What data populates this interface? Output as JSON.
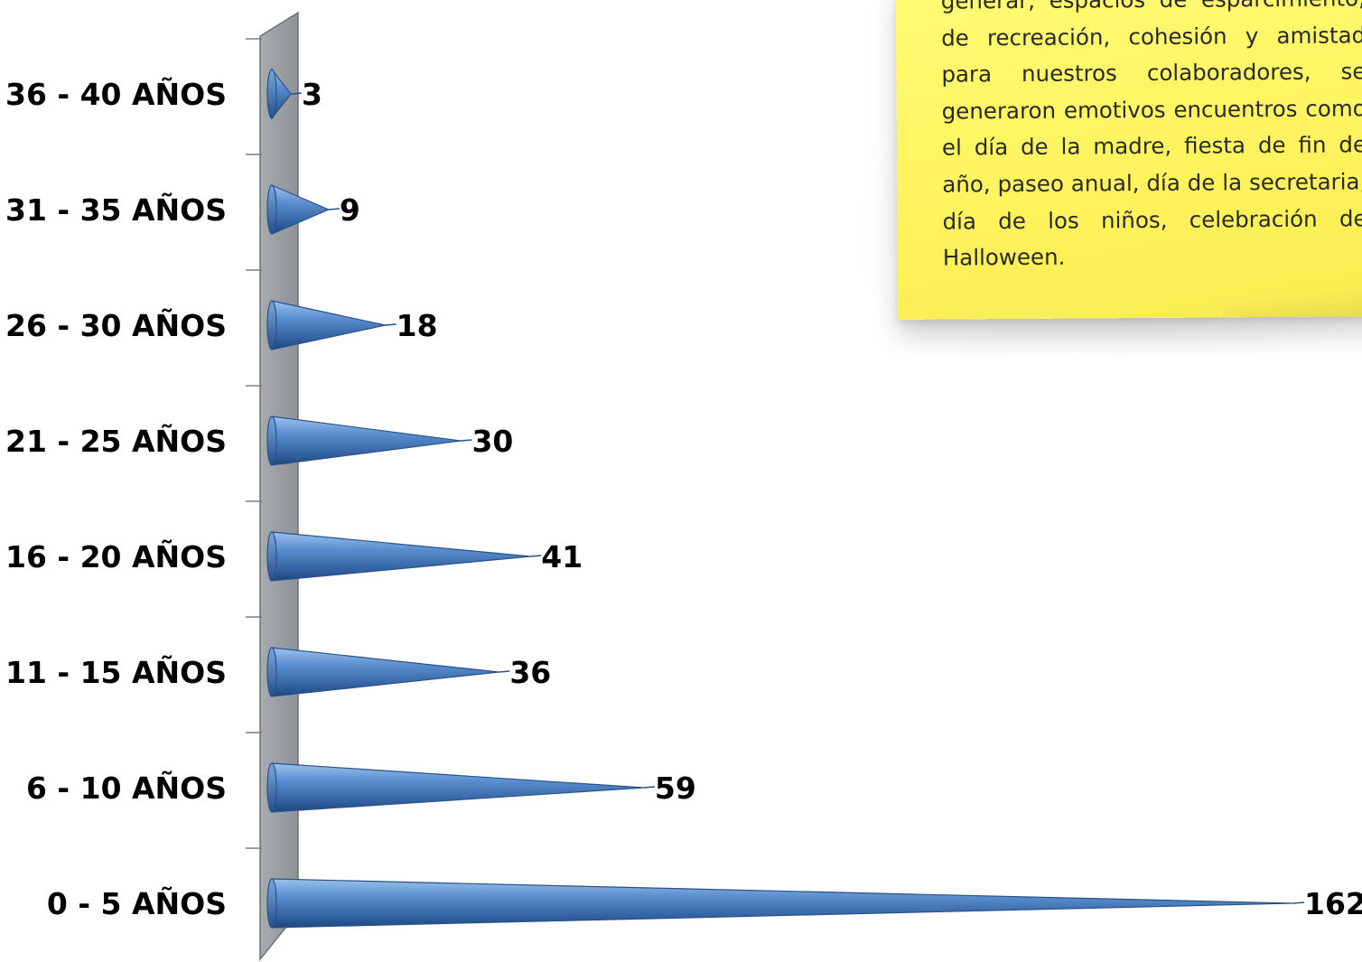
{
  "chart_data": {
    "type": "bar",
    "orientation": "horizontal",
    "bar_shape": "cone",
    "categories": [
      "36 - 40 AÑOS",
      "31 - 35 AÑOS",
      "26 - 30 AÑOS",
      "21 - 25 AÑOS",
      "16 - 20 AÑOS",
      "11 - 15 AÑOS",
      "6 - 10 AÑOS",
      "0 - 5 AÑOS"
    ],
    "values": [
      3,
      9,
      18,
      30,
      41,
      36,
      59,
      162
    ],
    "value_labels": [
      "3",
      "9",
      "18",
      "30",
      "41",
      "36",
      "59",
      "162"
    ],
    "xlim": [
      0,
      162
    ],
    "grid": false,
    "legend": "none",
    "bar_color": "#4f81bd"
  },
  "note": {
    "text": "generar, espacios de esparcimiento, de recreación, cohesión y amistad para nuestros colaboradores, se generaron emotivos encuentros como el día de la madre, fiesta de fin de año, paseo anual, día de la secretaria, día de los niños, celebración de Halloween."
  }
}
